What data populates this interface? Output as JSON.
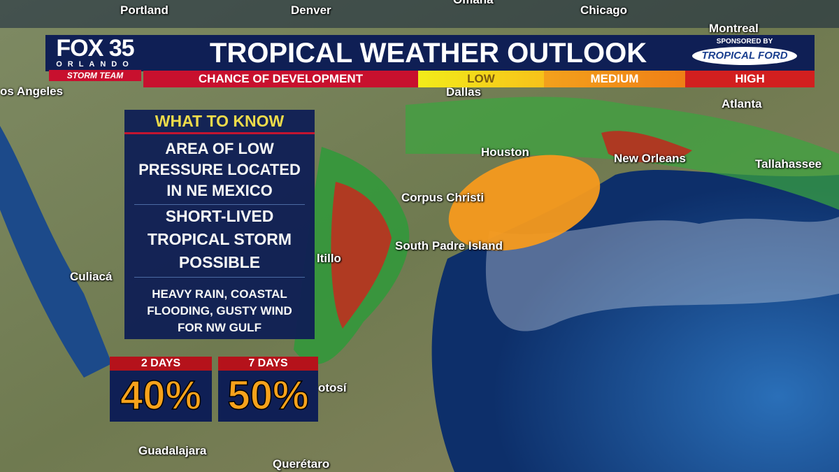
{
  "header": {
    "logo": {
      "brand": "FOX 35",
      "city": "ORLANDO",
      "team": "STORM TEAM"
    },
    "title": "TROPICAL WEATHER OUTLOOK",
    "sponsor": {
      "label": "SPONSORED BY",
      "name": "TROPICAL FORD"
    }
  },
  "scale": {
    "label": "CHANCE OF DEVELOPMENT",
    "levels": [
      "LOW",
      "MEDIUM",
      "HIGH"
    ]
  },
  "panel": {
    "heading": "WHAT TO KNOW",
    "items": [
      "AREA OF LOW PRESSURE LOCATED IN NE MEXICO",
      "SHORT-LIVED TROPICAL STORM POSSIBLE",
      "HEAVY RAIN, COASTAL FLOODING, GUSTY WIND FOR NW GULF"
    ]
  },
  "odds": [
    {
      "label": "2 DAYS",
      "value": "40%"
    },
    {
      "label": "7 DAYS",
      "value": "50%"
    }
  ],
  "map_labels": [
    "Portland",
    "Denver",
    "Omaha",
    "Chicago",
    "Montreal",
    "os Angeles",
    "Dallas",
    "Atlanta",
    "Houston",
    "New Orleans",
    "Tallahassee",
    "Corpus Christi",
    "South Padre Island",
    "Culiacá",
    "ltillo",
    "otosí",
    "Guadalajara",
    "Querétaro"
  ]
}
